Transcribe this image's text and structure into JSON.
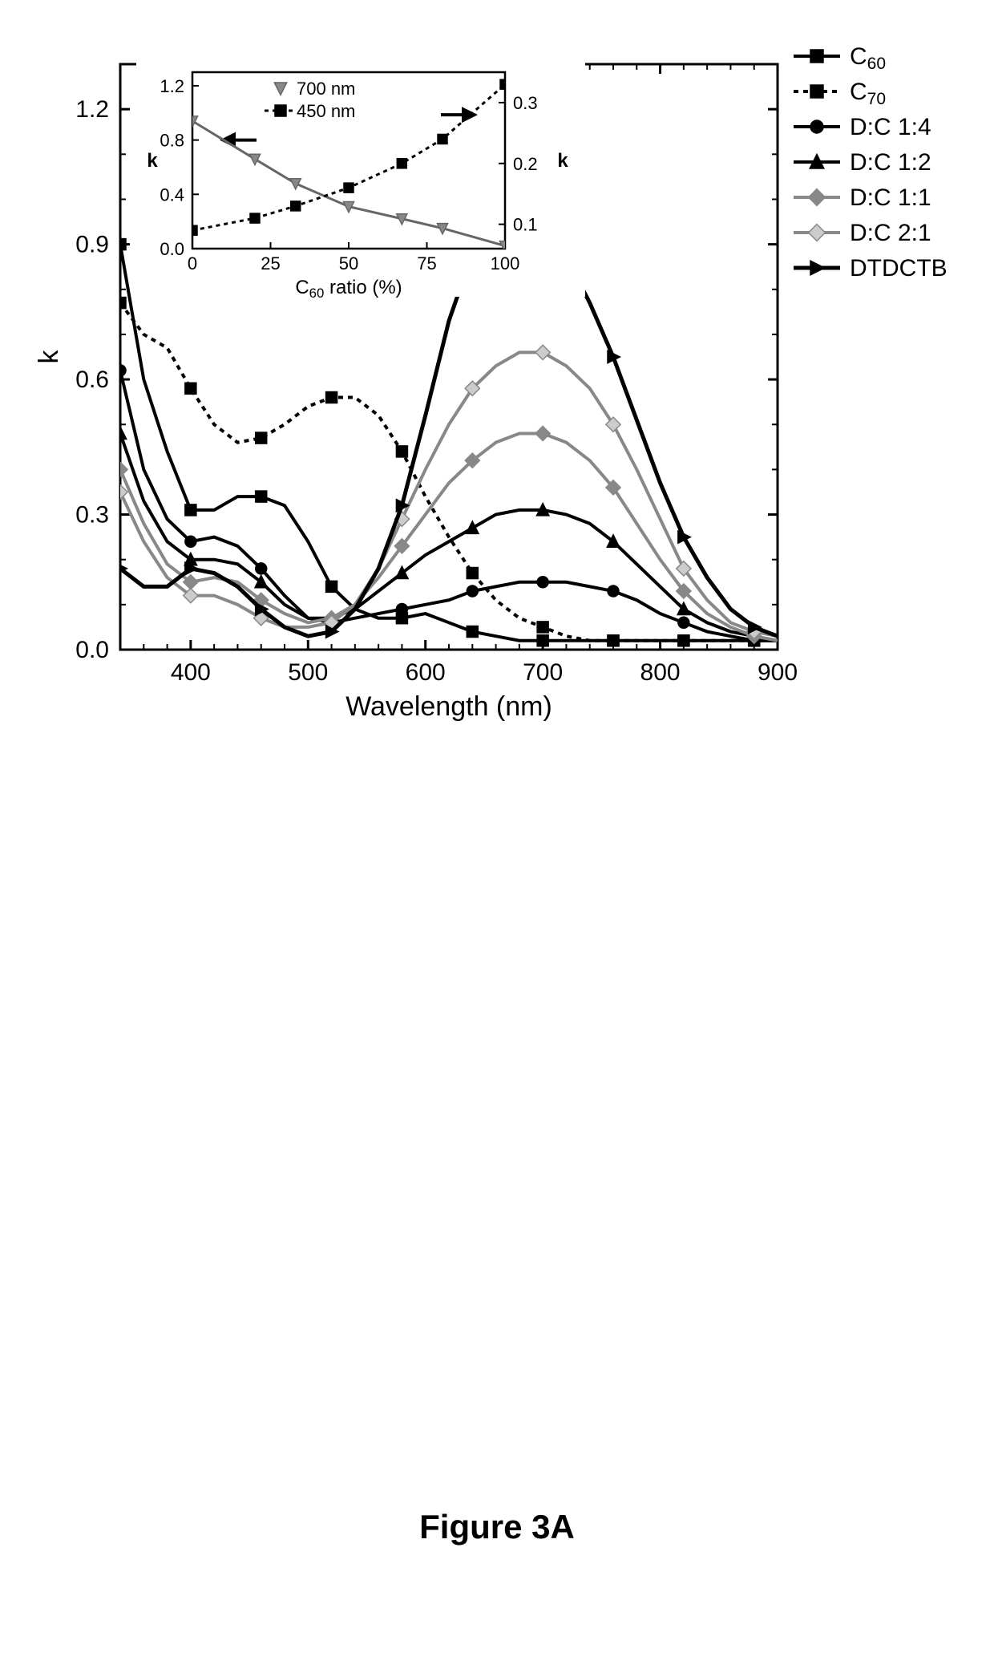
{
  "figure_caption": "Figure 3A",
  "main": {
    "type": "line",
    "xlabel": "Wavelength (nm)",
    "ylabel": "k",
    "label_fontsize": 34,
    "tick_fontsize": 30,
    "xlim": [
      340,
      900
    ],
    "ylim": [
      0,
      1.3
    ],
    "xtick_step": 100,
    "xtick_start": 400,
    "ytick_step": 0.3,
    "axis_color": "#000000",
    "background_color": "#ffffff",
    "series": [
      {
        "name": "C60",
        "label_html": "C<sub>60</sub>",
        "color": "#000000",
        "dash": "solid",
        "marker": "square",
        "marker_fill": "#000000",
        "line_width": 4,
        "x": [
          340,
          360,
          380,
          400,
          420,
          440,
          460,
          480,
          500,
          520,
          540,
          560,
          580,
          600,
          620,
          640,
          660,
          680,
          700,
          720,
          740,
          760,
          780,
          800,
          820,
          840,
          860,
          880,
          900
        ],
        "y": [
          0.9,
          0.6,
          0.44,
          0.31,
          0.31,
          0.34,
          0.34,
          0.32,
          0.24,
          0.14,
          0.09,
          0.07,
          0.07,
          0.08,
          0.06,
          0.04,
          0.03,
          0.02,
          0.02,
          0.02,
          0.02,
          0.02,
          0.02,
          0.02,
          0.02,
          0.02,
          0.02,
          0.02,
          0.02
        ]
      },
      {
        "name": "C70",
        "label_html": "C<sub>70</sub>",
        "color": "#000000",
        "dash": "6,6",
        "marker": "square",
        "marker_fill": "#000000",
        "line_width": 4,
        "x": [
          340,
          360,
          380,
          400,
          420,
          440,
          460,
          480,
          500,
          520,
          540,
          560,
          580,
          600,
          620,
          640,
          660,
          680,
          700,
          720,
          740,
          760,
          780,
          800,
          820,
          840,
          860,
          880,
          900
        ],
        "y": [
          0.77,
          0.7,
          0.67,
          0.58,
          0.5,
          0.46,
          0.47,
          0.5,
          0.54,
          0.56,
          0.56,
          0.52,
          0.44,
          0.34,
          0.25,
          0.17,
          0.11,
          0.07,
          0.05,
          0.03,
          0.02,
          0.02,
          0.02,
          0.02,
          0.02,
          0.02,
          0.02,
          0.02,
          0.02
        ]
      },
      {
        "name": "D:C 1:4",
        "label_html": "D:C 1:4",
        "color": "#000000",
        "dash": "solid",
        "marker": "circle",
        "marker_fill": "#000000",
        "line_width": 4,
        "x": [
          340,
          360,
          380,
          400,
          420,
          440,
          460,
          480,
          500,
          520,
          540,
          560,
          580,
          600,
          620,
          640,
          660,
          680,
          700,
          720,
          740,
          760,
          780,
          800,
          820,
          840,
          860,
          880,
          900
        ],
        "y": [
          0.62,
          0.4,
          0.29,
          0.24,
          0.25,
          0.23,
          0.18,
          0.12,
          0.07,
          0.06,
          0.07,
          0.08,
          0.09,
          0.1,
          0.11,
          0.13,
          0.14,
          0.15,
          0.15,
          0.15,
          0.14,
          0.13,
          0.11,
          0.08,
          0.06,
          0.04,
          0.03,
          0.02,
          0.02
        ]
      },
      {
        "name": "D:C 1:2",
        "label_html": "D:C 1:2",
        "color": "#000000",
        "dash": "solid",
        "marker": "triangle-up",
        "marker_fill": "#000000",
        "line_width": 4,
        "x": [
          340,
          360,
          380,
          400,
          420,
          440,
          460,
          480,
          500,
          520,
          540,
          560,
          580,
          600,
          620,
          640,
          660,
          680,
          700,
          720,
          740,
          760,
          780,
          800,
          820,
          840,
          860,
          880,
          900
        ],
        "y": [
          0.48,
          0.33,
          0.24,
          0.2,
          0.2,
          0.19,
          0.15,
          0.1,
          0.07,
          0.07,
          0.09,
          0.13,
          0.17,
          0.21,
          0.24,
          0.27,
          0.3,
          0.31,
          0.31,
          0.3,
          0.28,
          0.24,
          0.19,
          0.14,
          0.09,
          0.06,
          0.04,
          0.03,
          0.02
        ]
      },
      {
        "name": "D:C 1:1",
        "label_html": "D:C 1:1",
        "color": "#888888",
        "dash": "solid",
        "marker": "diamond",
        "marker_fill": "#888888",
        "line_width": 4,
        "x": [
          340,
          360,
          380,
          400,
          420,
          440,
          460,
          480,
          500,
          520,
          540,
          560,
          580,
          600,
          620,
          640,
          660,
          680,
          700,
          720,
          740,
          760,
          780,
          800,
          820,
          840,
          860,
          880,
          900
        ],
        "y": [
          0.4,
          0.28,
          0.19,
          0.15,
          0.16,
          0.15,
          0.11,
          0.08,
          0.06,
          0.07,
          0.1,
          0.16,
          0.23,
          0.3,
          0.37,
          0.42,
          0.46,
          0.48,
          0.48,
          0.46,
          0.42,
          0.36,
          0.28,
          0.2,
          0.13,
          0.08,
          0.05,
          0.03,
          0.02
        ]
      },
      {
        "name": "D:C 2:1",
        "label_html": "D:C 2:1",
        "color": "#888888",
        "dash": "solid",
        "marker": "diamond",
        "marker_fill": "#cccccc",
        "line_width": 4,
        "x": [
          340,
          360,
          380,
          400,
          420,
          440,
          460,
          480,
          500,
          520,
          540,
          560,
          580,
          600,
          620,
          640,
          660,
          680,
          700,
          720,
          740,
          760,
          780,
          800,
          820,
          840,
          860,
          880,
          900
        ],
        "y": [
          0.35,
          0.24,
          0.16,
          0.12,
          0.12,
          0.1,
          0.07,
          0.05,
          0.05,
          0.06,
          0.1,
          0.18,
          0.29,
          0.4,
          0.5,
          0.58,
          0.63,
          0.66,
          0.66,
          0.63,
          0.58,
          0.5,
          0.4,
          0.29,
          0.18,
          0.11,
          0.06,
          0.04,
          0.03
        ]
      },
      {
        "name": "DTDCTB",
        "label_html": "DTDCTB",
        "color": "#000000",
        "dash": "solid",
        "marker": "triangle-right",
        "marker_fill": "#000000",
        "line_width": 5,
        "x": [
          340,
          360,
          380,
          400,
          420,
          440,
          460,
          480,
          500,
          520,
          540,
          560,
          580,
          600,
          620,
          640,
          660,
          680,
          700,
          720,
          740,
          760,
          780,
          800,
          820,
          840,
          860,
          880,
          900
        ],
        "y": [
          0.18,
          0.14,
          0.14,
          0.18,
          0.17,
          0.14,
          0.09,
          0.05,
          0.03,
          0.04,
          0.09,
          0.18,
          0.32,
          0.52,
          0.73,
          0.88,
          0.96,
          0.97,
          0.94,
          0.87,
          0.77,
          0.65,
          0.51,
          0.37,
          0.25,
          0.16,
          0.09,
          0.05,
          0.03
        ]
      }
    ]
  },
  "inset": {
    "type": "line",
    "xlabel": "C60 ratio (%)",
    "ylabel_left": "k",
    "ylabel_right": "k",
    "label_fontsize": 24,
    "tick_fontsize": 22,
    "xlim": [
      0,
      100
    ],
    "ylim_left": [
      0,
      1.3
    ],
    "ylim_right": [
      0.06,
      0.35
    ],
    "xtick_step": 25,
    "ytick_left_step": 0.4,
    "ytick_right_step": 0.1,
    "axis_color": "#000000",
    "background_color": "#ffffff",
    "series": [
      {
        "name": "700 nm",
        "label": "700 nm",
        "color": "#666666",
        "dash": "solid",
        "marker": "triangle-down",
        "marker_fill": "#888888",
        "axis": "left",
        "x": [
          0,
          20,
          33,
          50,
          67,
          80,
          100
        ],
        "y": [
          0.94,
          0.66,
          0.48,
          0.31,
          0.22,
          0.15,
          0.02
        ]
      },
      {
        "name": "450 nm",
        "label": "450 nm",
        "color": "#000000",
        "dash": "5,5",
        "marker": "square",
        "marker_fill": "#000000",
        "axis": "right",
        "x": [
          0,
          20,
          33,
          50,
          67,
          80,
          100
        ],
        "y": [
          0.09,
          0.11,
          0.13,
          0.16,
          0.2,
          0.24,
          0.33
        ]
      }
    ]
  },
  "legend": {
    "position": "top-right",
    "fontsize": 30
  }
}
